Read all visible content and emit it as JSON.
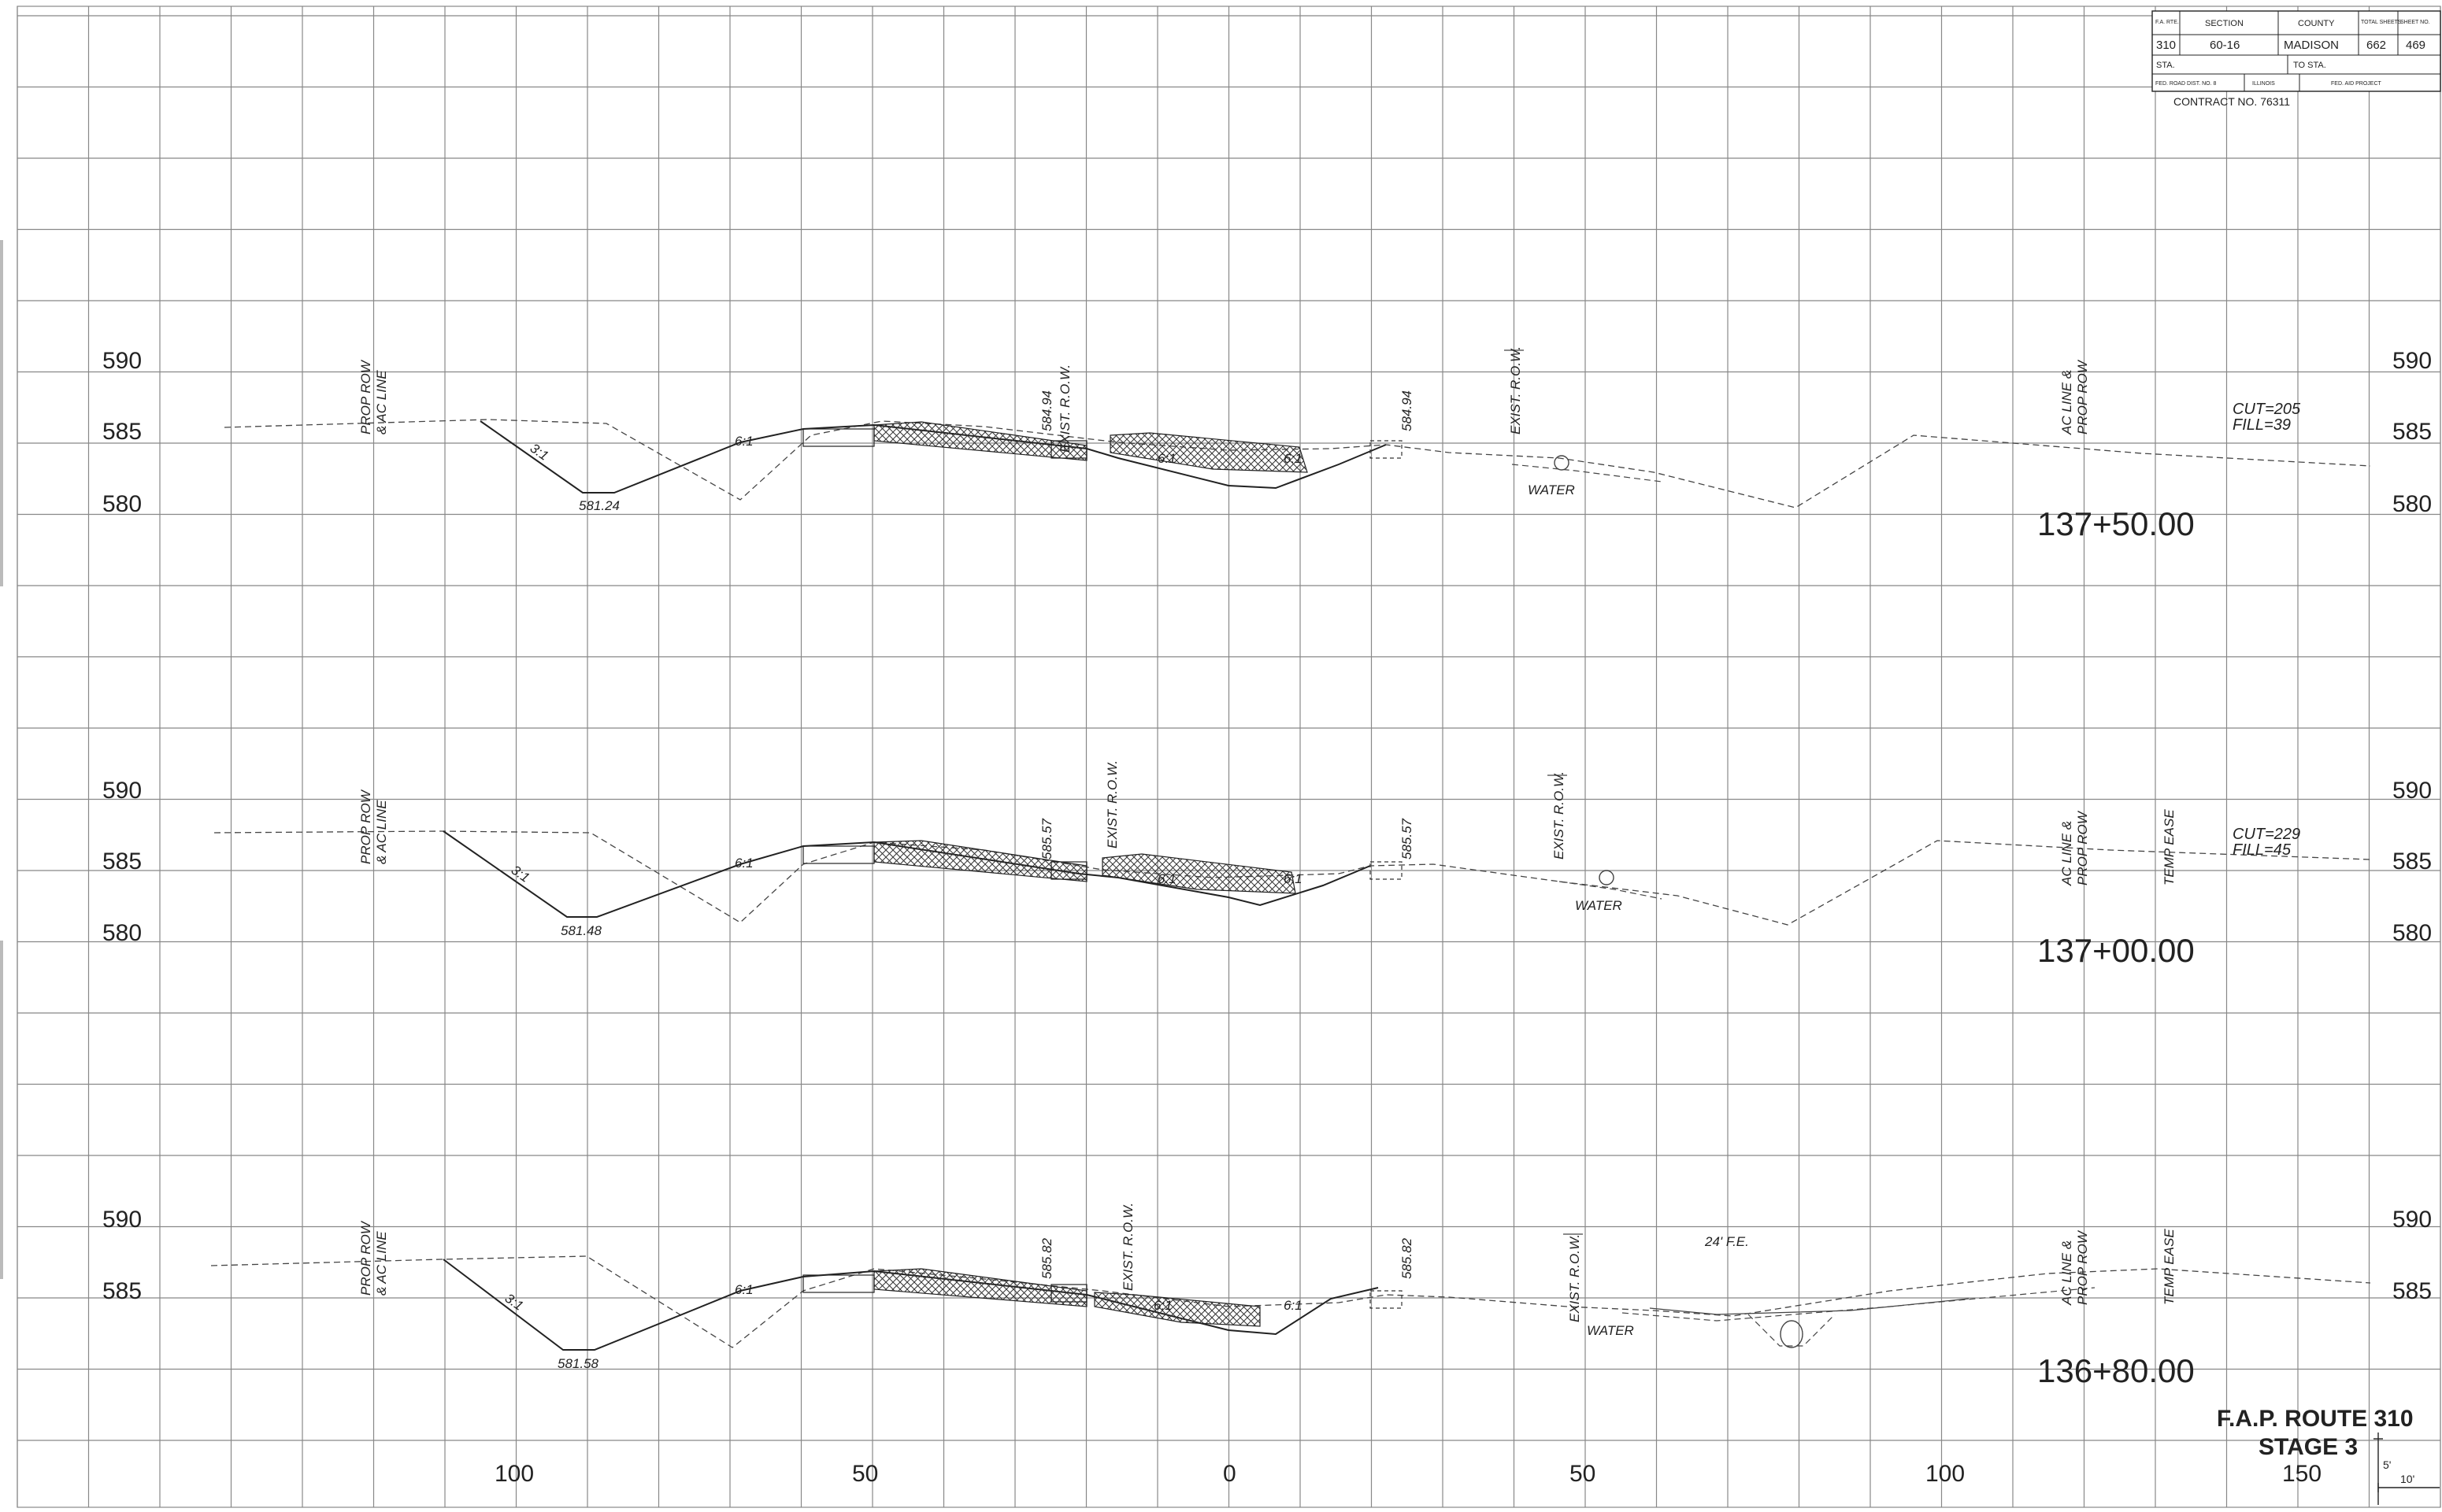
{
  "title_block": {
    "h_rte": "F.A. RTE.",
    "h_section": "SECTION",
    "h_county": "COUNTY",
    "h_total": "TOTAL SHEETS",
    "h_sheet": "SHEET NO.",
    "rte": "310",
    "section": "60-16",
    "county": "MADISON",
    "total_sheets": "662",
    "sheet_no": "469",
    "sta": "STA.",
    "to_sta": "TO STA.",
    "dist": "FED. ROAD DIST. NO. 8",
    "state": "ILLINOIS",
    "aid": "FED. AID PROJECT",
    "contract": "CONTRACT NO. 76311"
  },
  "route": {
    "line1": "F.A.P. ROUTE 310",
    "line2": "STAGE 3"
  },
  "scale": {
    "vertical": "5'",
    "horizontal": "10'"
  },
  "x_axis_labels": [
    "100",
    "50",
    "0",
    "50",
    "100",
    "150"
  ],
  "sections": [
    {
      "station": "137+50.00",
      "elev_labels": [
        "590",
        "585",
        "580"
      ],
      "ditch_elev": "581.24",
      "cl_elev": "584.94",
      "cut_fill": [
        "CUT=205",
        "FILL=39"
      ],
      "notes": {
        "prop_row_left": [
          "PROP ROW",
          "& AC LINE"
        ],
        "exist_row": "EXIST. R.O.W.",
        "exist_row_2": "EXIST. R.O.W.",
        "right_elev": "584.94",
        "water": "WATER",
        "ac_line": [
          "AC LINE &",
          "PROP ROW"
        ],
        "slope_31": "3:1",
        "slope_61a": "6:1",
        "slope_61b": "6:1",
        "slope_61c": "6:1"
      }
    },
    {
      "station": "137+00.00",
      "elev_labels": [
        "590",
        "585",
        "580"
      ],
      "ditch_elev": "581.48",
      "cl_elev": "585.57",
      "cut_fill": [
        "CUT=229",
        "FILL=45"
      ],
      "notes": {
        "prop_row_left": [
          "PROP ROW",
          "& AC LINE"
        ],
        "exist_row": "EXIST. R.O.W.",
        "exist_row_2": "EXIST. R.O.W.",
        "right_elev": "585.57",
        "water": "WATER",
        "ac_line": [
          "AC LINE &",
          "PROP ROW"
        ],
        "temp_ease": "TEMP EASE",
        "slope_31": "3:1",
        "slope_61a": "6:1",
        "slope_61b": "6:1",
        "slope_61c": "6:1"
      }
    },
    {
      "station": "136+80.00",
      "elev_labels": [
        "590",
        "585"
      ],
      "ditch_elev": "581.58",
      "cl_elev": "585.82",
      "notes": {
        "prop_row_left": [
          "PROP ROW",
          "& AC LINE"
        ],
        "exist_row": "EXIST. R.O.W.",
        "exist_row_2": "EXIST. R.O.W.",
        "right_elev": "585.82",
        "water": "WATER",
        "fe": "24' F.E.",
        "ac_line": [
          "AC LINE &",
          "PROP ROW"
        ],
        "temp_ease": "TEMP EASE",
        "slope_31": "3:1",
        "slope_61a": "6:1",
        "slope_61b": "6:1",
        "slope_61c": "6:1"
      }
    }
  ]
}
